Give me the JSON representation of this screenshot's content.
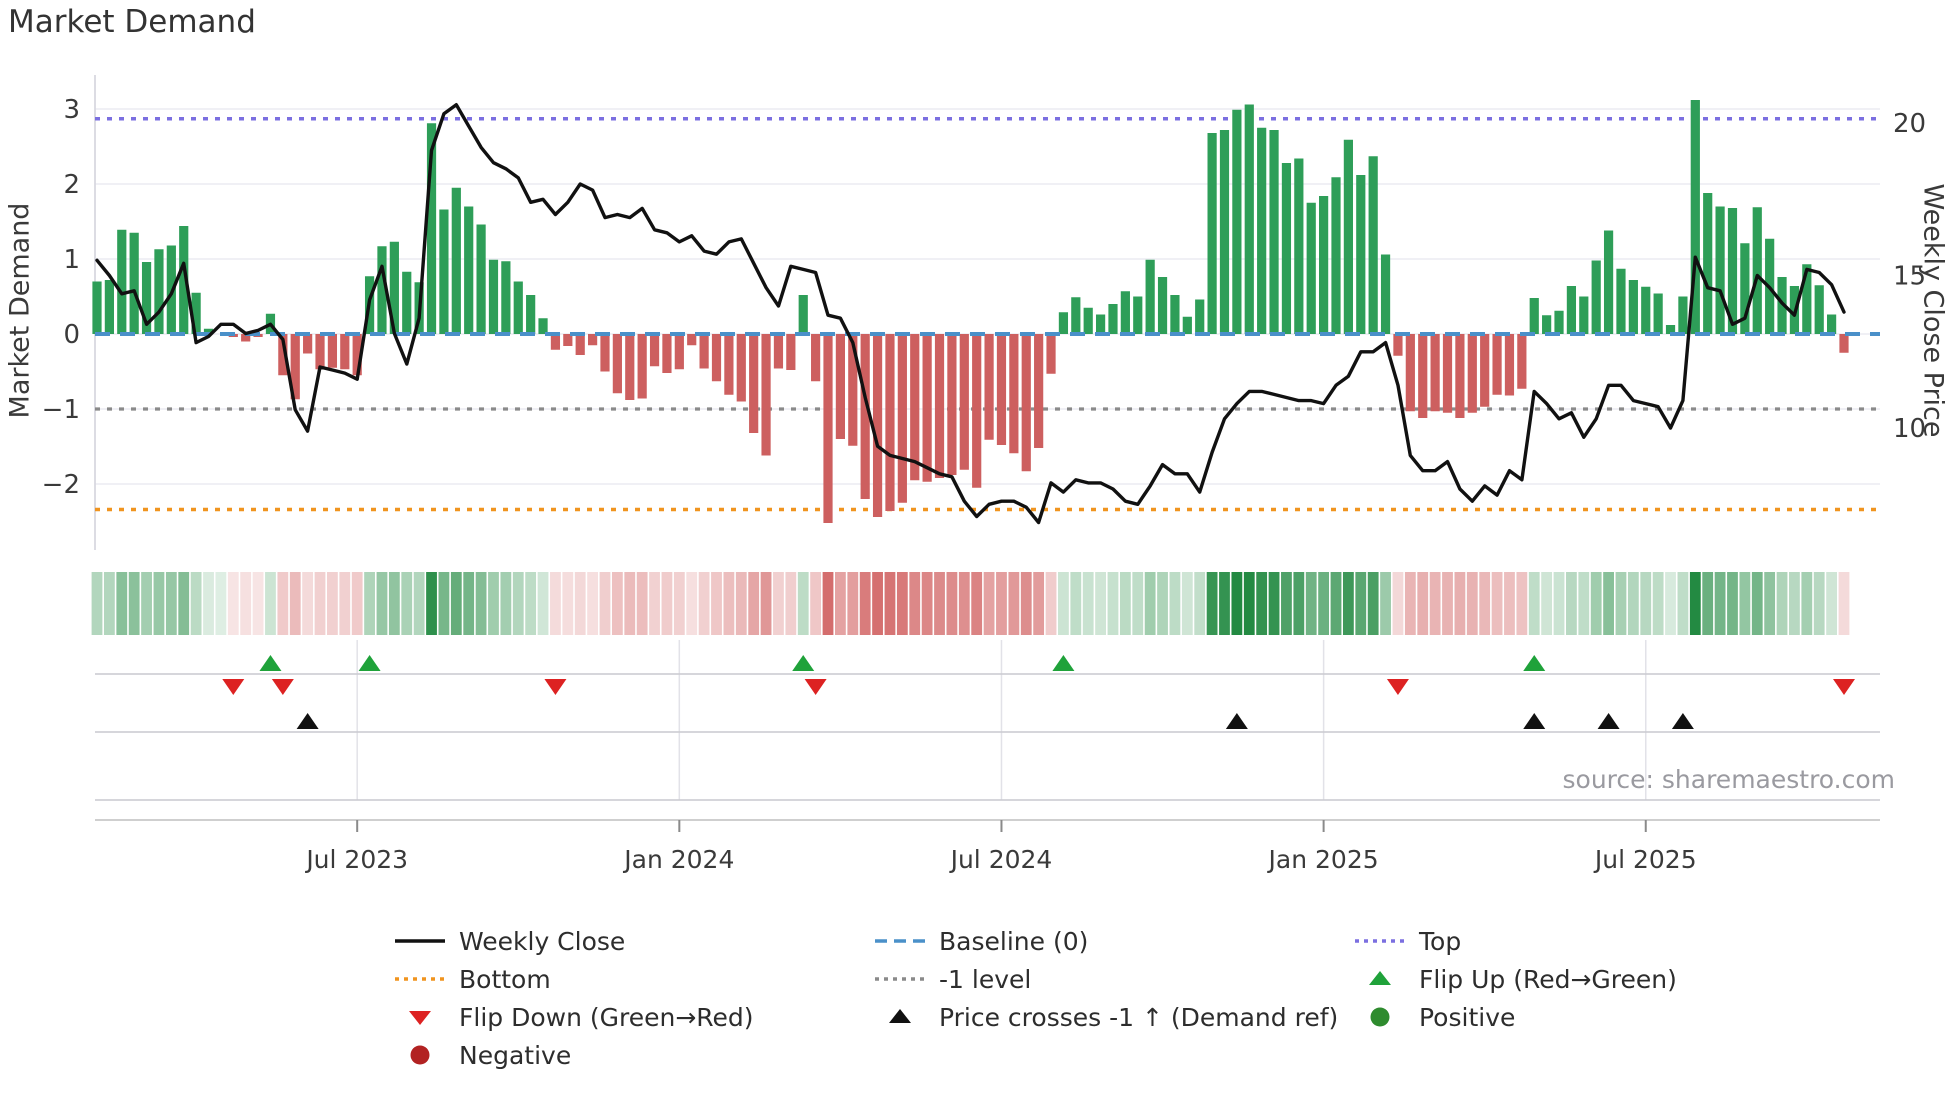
{
  "title": "Market Demand",
  "source_note": "source: sharemaestro.com",
  "axes": {
    "left_label": "Market Demand",
    "right_label": "Weekly Close Price",
    "left_ticks": [
      3,
      2,
      1,
      0,
      -1,
      -2
    ],
    "right_ticks": [
      20,
      15,
      10
    ],
    "x_tick_labels": [
      "Jul 2023",
      "Jan 2024",
      "Jul 2024",
      "Jan 2025",
      "Jul 2025"
    ]
  },
  "chart_data": {
    "type": "bar",
    "subtype": "bar+line combo with heatmap strip and event-marker rows",
    "title": "Market Demand",
    "xlabel": "",
    "ylabel_left": "Market Demand",
    "ylabel_right": "Weekly Close Price",
    "ylim_left": [
      -3.2,
      3.45
    ],
    "right_axis_ticks": [
      20,
      15,
      10
    ],
    "left_axis_ticks": [
      3,
      2,
      1,
      0,
      -1,
      -2
    ],
    "x_ticks": [
      {
        "index": 21,
        "label": "Jul 2023"
      },
      {
        "index": 47,
        "label": "Jan 2024"
      },
      {
        "index": 73,
        "label": "Jul 2024"
      },
      {
        "index": 99,
        "label": "Jan 2025"
      },
      {
        "index": 125,
        "label": "Jul 2025"
      }
    ],
    "levels": {
      "baseline": 0,
      "top": 2.87,
      "bottom": -2.34,
      "minus_one": -1
    },
    "series": {
      "demand": [
        0.7,
        0.72,
        1.39,
        1.35,
        0.96,
        1.13,
        1.18,
        1.44,
        0.55,
        0.07,
        0.0,
        -0.04,
        -0.1,
        -0.04,
        0.27,
        -0.55,
        -0.87,
        -0.26,
        -0.47,
        -0.45,
        -0.47,
        -0.55,
        0.77,
        1.17,
        1.23,
        0.83,
        0.69,
        2.81,
        1.66,
        1.95,
        1.7,
        1.46,
        0.99,
        0.97,
        0.7,
        0.52,
        0.21,
        -0.21,
        -0.16,
        -0.28,
        -0.15,
        -0.5,
        -0.79,
        -0.88,
        -0.86,
        -0.43,
        -0.52,
        -0.47,
        -0.15,
        -0.46,
        -0.63,
        -0.81,
        -0.9,
        -1.32,
        -1.62,
        -0.46,
        -0.48,
        0.52,
        -0.63,
        -2.52,
        -1.4,
        -1.49,
        -2.2,
        -2.44,
        -2.36,
        -2.25,
        -1.95,
        -1.97,
        -1.92,
        -1.88,
        -1.81,
        -2.05,
        -1.41,
        -1.48,
        -1.59,
        -1.83,
        -1.52,
        -0.53,
        0.29,
        0.49,
        0.35,
        0.26,
        0.4,
        0.57,
        0.5,
        0.99,
        0.76,
        0.52,
        0.23,
        0.46,
        2.68,
        2.72,
        2.99,
        3.06,
        2.75,
        2.72,
        2.28,
        2.34,
        1.75,
        1.84,
        2.09,
        2.59,
        2.12,
        2.37,
        1.06,
        -0.29,
        -1.03,
        -1.12,
        -1.03,
        -1.05,
        -1.12,
        -1.05,
        -0.97,
        -0.81,
        -0.82,
        -0.73,
        0.48,
        0.25,
        0.31,
        0.64,
        0.5,
        0.98,
        1.38,
        0.87,
        0.72,
        0.63,
        0.54,
        0.12,
        0.5,
        3.12,
        1.88,
        1.7,
        1.68,
        1.21,
        1.69,
        1.27,
        0.76,
        0.64,
        0.93,
        0.65,
        0.26,
        -0.25
      ],
      "weekly_close": [
        15.5,
        15.0,
        14.4,
        14.5,
        13.4,
        13.8,
        14.4,
        15.4,
        12.8,
        13.0,
        13.4,
        13.4,
        13.1,
        13.2,
        13.4,
        12.9,
        10.6,
        9.9,
        12.0,
        11.9,
        11.8,
        11.6,
        14.2,
        15.3,
        13.1,
        12.1,
        13.6,
        19.1,
        20.3,
        20.6,
        19.9,
        19.2,
        18.7,
        18.5,
        18.2,
        17.4,
        17.5,
        17.0,
        17.4,
        18.0,
        17.8,
        16.9,
        17.0,
        16.9,
        17.2,
        16.5,
        16.4,
        16.1,
        16.3,
        15.8,
        15.7,
        16.1,
        16.2,
        15.4,
        14.6,
        14.0,
        15.3,
        15.2,
        15.1,
        13.7,
        13.6,
        12.8,
        11.0,
        9.4,
        9.1,
        9.0,
        8.9,
        8.7,
        8.5,
        8.4,
        7.6,
        7.1,
        7.5,
        7.6,
        7.6,
        7.4,
        6.9,
        8.2,
        7.9,
        8.3,
        8.2,
        8.2,
        8.0,
        7.6,
        7.5,
        8.1,
        8.8,
        8.5,
        8.5,
        7.9,
        9.2,
        10.3,
        10.8,
        11.2,
        11.2,
        11.1,
        11.0,
        10.9,
        10.9,
        10.8,
        11.4,
        11.7,
        12.5,
        12.5,
        12.8,
        11.4,
        9.1,
        8.6,
        8.6,
        8.9,
        8.0,
        7.6,
        8.1,
        7.8,
        8.6,
        8.3,
        11.2,
        10.8,
        10.3,
        10.5,
        9.7,
        10.3,
        11.4,
        11.4,
        10.9,
        10.8,
        10.7,
        10.0,
        10.9,
        15.6,
        14.6,
        14.5,
        13.4,
        13.6,
        15.0,
        14.6,
        14.1,
        13.7,
        15.2,
        15.1,
        14.7,
        13.8
      ]
    },
    "markers": {
      "flip_up_weeks": [
        14,
        22,
        57,
        78,
        116
      ],
      "flip_down_weeks": [
        11,
        15,
        37,
        58,
        105,
        141
      ],
      "price_cross_minus1_up_weeks": [
        17,
        92,
        116,
        122,
        128
      ]
    },
    "heatmap": "color intensity proportional to |demand|, green when demand >= 0, red when demand < 0",
    "grid": true,
    "legend_position": "bottom"
  },
  "colors": {
    "positive_bar": "#2e9e58",
    "negative_bar": "#cd5f5f",
    "weekly_close_line": "#111111",
    "baseline": "#4a90c9",
    "top_level": "#7b6fe0",
    "bottom_level": "#f0941f",
    "minus_one_level": "#8a8a8a",
    "flip_up": "#1fa23a",
    "flip_down": "#dd2222",
    "price_cross": "#111111",
    "positive_dot": "#2e8b2e",
    "negative_dot": "#b22222",
    "grid": "#ececf2",
    "axis_text": "#3a3a3a"
  },
  "legend": {
    "col1": [
      {
        "glyph": "line-solid",
        "color": "#111111",
        "label": "Weekly Close"
      },
      {
        "glyph": "line-dotted",
        "color": "#f0941f",
        "label": "Bottom"
      },
      {
        "glyph": "triangle-down",
        "color": "#dd2222",
        "label": "Flip Down (Green→Red)"
      },
      {
        "glyph": "circle",
        "color": "#b22222",
        "label": "Negative"
      }
    ],
    "col2": [
      {
        "glyph": "line-dashed",
        "color": "#4a90c9",
        "label": "Baseline (0)"
      },
      {
        "glyph": "line-dotted",
        "color": "#8a8a8a",
        "label": "-1 level"
      },
      {
        "glyph": "triangle-up",
        "color": "#111111",
        "label": "Price crosses -1 ↑ (Demand ref)"
      }
    ],
    "col3": [
      {
        "glyph": "line-dotted",
        "color": "#7b6fe0",
        "label": "Top"
      },
      {
        "glyph": "triangle-up",
        "color": "#1fa23a",
        "label": "Flip Up (Red→Green)"
      },
      {
        "glyph": "circle",
        "color": "#2e8b2e",
        "label": "Positive"
      }
    ]
  }
}
